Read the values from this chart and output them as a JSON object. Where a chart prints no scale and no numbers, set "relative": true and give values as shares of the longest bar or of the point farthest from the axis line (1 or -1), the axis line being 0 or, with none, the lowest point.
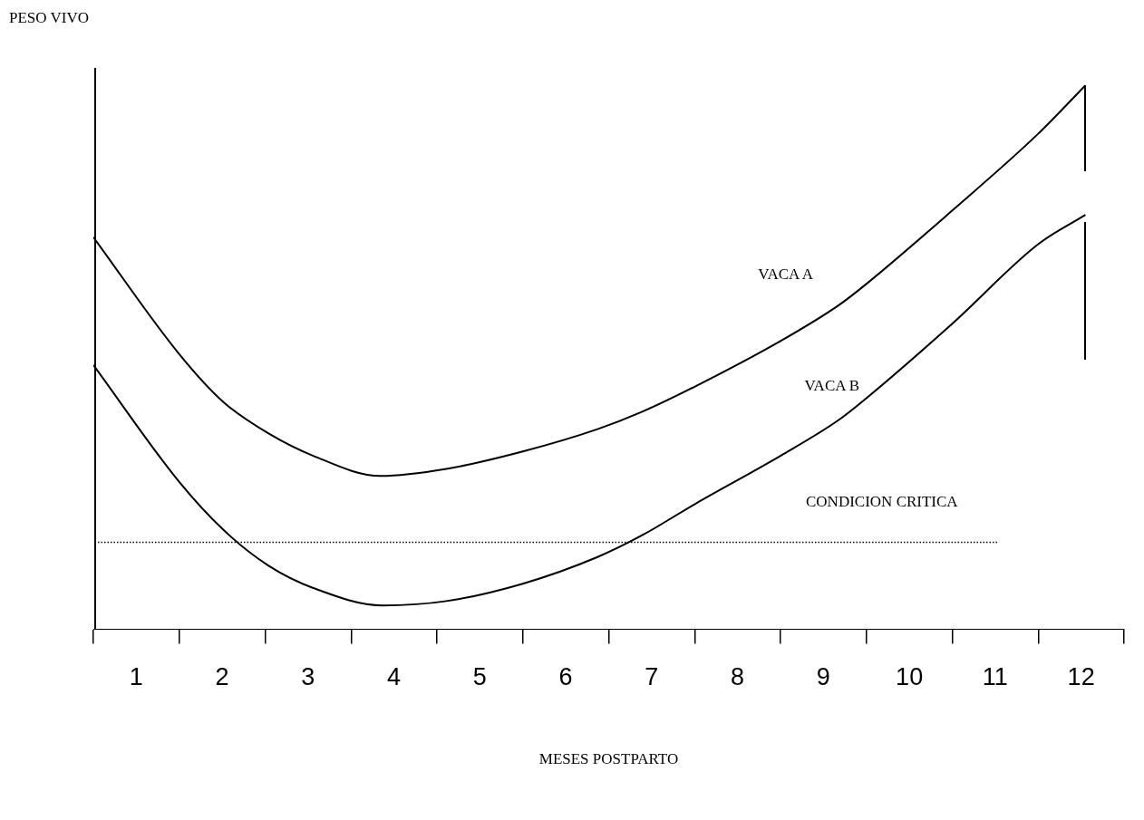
{
  "chart_data": {
    "type": "line",
    "relative": true,
    "xlabel": "MESES POSTPARTO",
    "ylabel": "PESO VIVO",
    "marker": "none",
    "line_style": "solid",
    "legend": false,
    "grid": false,
    "xlim": [
      0,
      12
    ],
    "xticks": [
      {
        "value": 0,
        "label": null
      },
      {
        "value": 0.5,
        "label": "1"
      },
      {
        "value": 1,
        "label": null
      },
      {
        "value": 1.5,
        "label": "2"
      },
      {
        "value": 2,
        "label": null
      },
      {
        "value": 2.5,
        "label": "3"
      },
      {
        "value": 3,
        "label": null
      },
      {
        "value": 3.5,
        "label": "4"
      },
      {
        "value": 4,
        "label": null
      },
      {
        "value": 4.5,
        "label": "5"
      },
      {
        "value": 5,
        "label": null
      },
      {
        "value": 5.5,
        "label": "6"
      },
      {
        "value": 6,
        "label": null
      },
      {
        "value": 6.5,
        "label": "7"
      },
      {
        "value": 7,
        "label": null
      },
      {
        "value": 7.5,
        "label": "8"
      },
      {
        "value": 8,
        "label": null
      },
      {
        "value": 8.5,
        "label": "9"
      },
      {
        "value": 9,
        "label": null
      },
      {
        "value": 9.5,
        "label": "10"
      },
      {
        "value": 10,
        "label": null
      },
      {
        "value": 10.5,
        "label": "11"
      },
      {
        "value": 11,
        "label": null
      },
      {
        "value": 11.5,
        "label": "12"
      },
      {
        "value": 12,
        "label": null
      }
    ],
    "series": [
      {
        "name": "VACA A",
        "color": "#000000",
        "x": [
          0,
          1,
          1.52,
          2.04,
          2.56,
          3.34,
          4.11,
          5,
          5.87,
          6.39,
          7,
          8,
          8.67,
          9,
          10,
          11,
          11.55
        ],
        "values": [
          0.721,
          0.506,
          0.417,
          0.36,
          0.319,
          0.282,
          0.295,
          0.327,
          0.368,
          0.4,
          0.446,
          0.53,
          0.595,
          0.635,
          0.77,
          0.911,
          1
        ]
      },
      {
        "name": "VACA B",
        "color": "#000000",
        "x": [
          0,
          1,
          1.52,
          2.04,
          2.56,
          3.37,
          4.11,
          5,
          5.87,
          6.39,
          7,
          8,
          8.67,
          9,
          10,
          11,
          11.55
        ],
        "values": [
          0.486,
          0.271,
          0.182,
          0.117,
          0.076,
          0.044,
          0.052,
          0.084,
          0.133,
          0.173,
          0.23,
          0.319,
          0.384,
          0.425,
          0.562,
          0.708,
          0.762
        ]
      }
    ],
    "ref_lines": [
      {
        "axis": "y",
        "value": 0.16,
        "label": "CONDICION CRITICA",
        "color": "#000000",
        "line_style": "dotted"
      }
    ]
  }
}
